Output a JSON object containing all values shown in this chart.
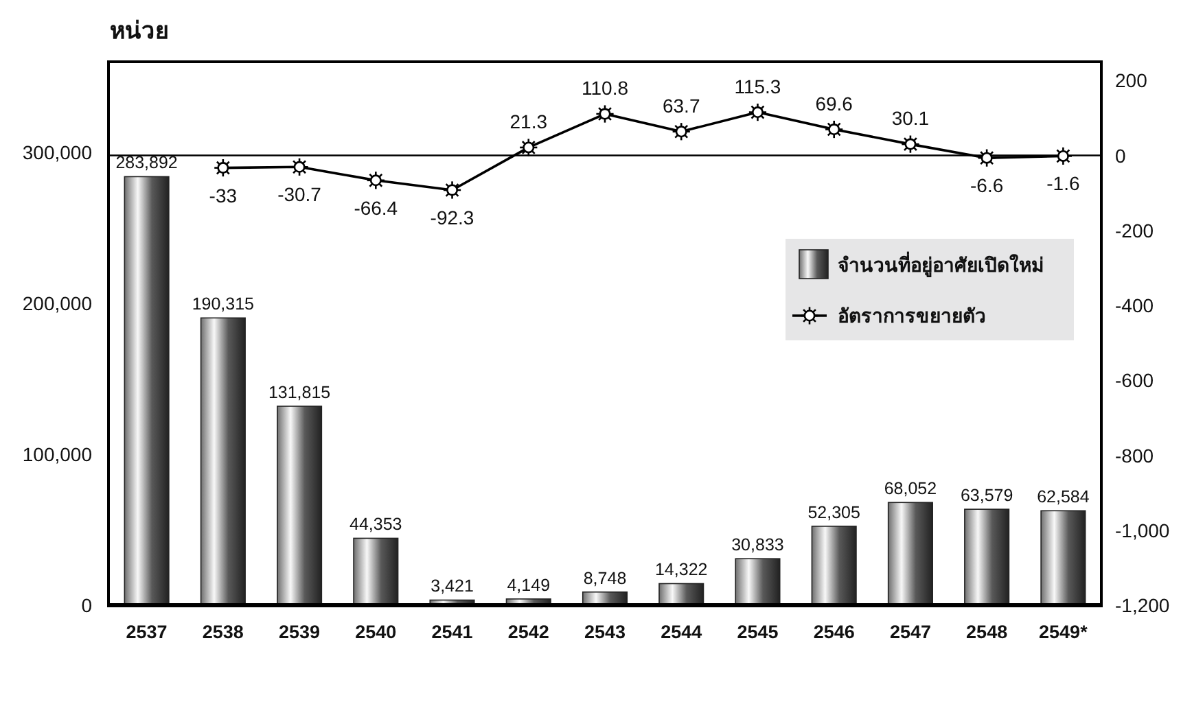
{
  "chart_data": {
    "type": "bar",
    "ylabel": "หน่วย",
    "categories": [
      "2537",
      "2538",
      "2539",
      "2540",
      "2541",
      "2542",
      "2543",
      "2544",
      "2545",
      "2546",
      "2547",
      "2548",
      "2549*"
    ],
    "series": [
      {
        "name": "จำนวนที่อยู่อาศัยเปิดใหม่",
        "color": "#222222",
        "values": [
          283892,
          190315,
          131815,
          44353,
          3421,
          4149,
          8748,
          14322,
          30833,
          52305,
          68052,
          63579,
          62584
        ],
        "value_labels": [
          "283,892",
          "190,315",
          "131,815",
          "44,353",
          "3,421",
          "4,149",
          "8,748",
          "14,322",
          "30,833",
          "52,305",
          "68,052",
          "63,579",
          "62,584"
        ]
      },
      {
        "name": "อัตราการขยายตัว",
        "type": "line",
        "axis": "y2",
        "color": "#000000",
        "values": [
          null,
          -33,
          -30.7,
          -66.4,
          -92.3,
          21.3,
          110.8,
          63.7,
          115.3,
          69.6,
          30.1,
          -6.6,
          -1.6
        ],
        "value_labels": [
          null,
          "-33",
          "-30.7",
          "-66.4",
          "-92.3",
          "21.3",
          "110.8",
          "63.7",
          "115.3",
          "69.6",
          "30.1",
          "-6.6",
          "-1.6"
        ]
      }
    ],
    "ylim": [
      0,
      360000
    ],
    "yticks": [
      0,
      {
        "value": 100000,
        "label": "100,000"
      },
      {
        "value": 200000,
        "label": "200,000"
      },
      {
        "value": 300000,
        "label": "300,000"
      }
    ],
    "y2lim": [
      -1200,
      250
    ],
    "y2ticks": [
      200,
      0,
      -200,
      -400,
      -600,
      -800,
      {
        "value": -1000,
        "label": "-1,000"
      },
      {
        "value": -1200,
        "label": "-1,200"
      }
    ],
    "ref_lines": [
      {
        "axis": "y2",
        "value": 0,
        "color": "#000000"
      }
    ],
    "legend": "right",
    "marker": "circle",
    "line_style": "solid"
  }
}
